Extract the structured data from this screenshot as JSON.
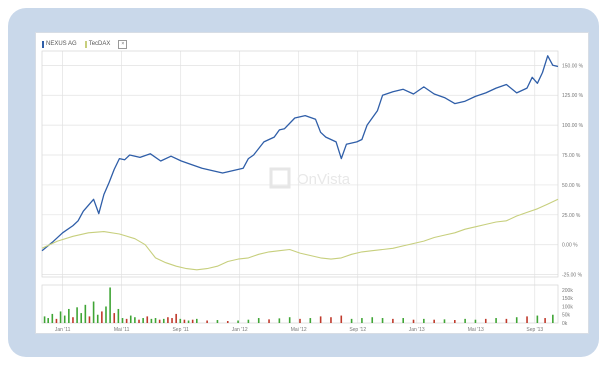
{
  "legend": {
    "items": [
      {
        "label": "NEXUS AG",
        "color": "#2f5ea8"
      },
      {
        "label": "TecDAX",
        "color": "#c7cf7d"
      }
    ],
    "close_label": "×"
  },
  "watermark": {
    "text": "OnVista",
    "icon": "onvista-logo-icon"
  },
  "chart_data": {
    "type": "line",
    "x_ticks": [
      "Jan '11",
      "Mai '11",
      "Sep '11",
      "Jan '12",
      "Mai '12",
      "Sep '12",
      "Jan '13",
      "Mai '13",
      "Sep '13"
    ],
    "y_ticks": [
      "150.00 %",
      "125.00 %",
      "100.00 %",
      "75.00 %",
      "50.00 %",
      "25.00 %",
      "0.00 %",
      "-25.00 %"
    ],
    "ylim": [
      -27,
      162
    ],
    "colors": {
      "nexus": "#2f5ea8",
      "tecdax": "#c7cf7d",
      "volume_up": "#3fa535",
      "volume_down": "#c0392b",
      "grid": "#e2e2e2"
    },
    "series": [
      {
        "name": "NEXUS AG",
        "points": [
          [
            0.0,
            -5
          ],
          [
            0.02,
            2
          ],
          [
            0.04,
            10
          ],
          [
            0.06,
            16
          ],
          [
            0.07,
            20
          ],
          [
            0.08,
            28
          ],
          [
            0.09,
            33
          ],
          [
            0.1,
            38
          ],
          [
            0.11,
            26
          ],
          [
            0.12,
            42
          ],
          [
            0.13,
            52
          ],
          [
            0.14,
            63
          ],
          [
            0.15,
            72
          ],
          [
            0.16,
            71
          ],
          [
            0.17,
            75
          ],
          [
            0.19,
            73
          ],
          [
            0.21,
            76
          ],
          [
            0.23,
            70
          ],
          [
            0.25,
            74
          ],
          [
            0.27,
            70
          ],
          [
            0.29,
            67
          ],
          [
            0.31,
            64
          ],
          [
            0.33,
            62
          ],
          [
            0.35,
            60
          ],
          [
            0.37,
            62
          ],
          [
            0.39,
            64
          ],
          [
            0.4,
            72
          ],
          [
            0.41,
            75
          ],
          [
            0.43,
            86
          ],
          [
            0.45,
            90
          ],
          [
            0.46,
            96
          ],
          [
            0.47,
            97
          ],
          [
            0.49,
            106
          ],
          [
            0.51,
            108
          ],
          [
            0.53,
            105
          ],
          [
            0.54,
            94
          ],
          [
            0.55,
            90
          ],
          [
            0.57,
            86
          ],
          [
            0.58,
            72
          ],
          [
            0.59,
            84
          ],
          [
            0.61,
            86
          ],
          [
            0.62,
            88
          ],
          [
            0.63,
            100
          ],
          [
            0.65,
            112
          ],
          [
            0.66,
            125
          ],
          [
            0.68,
            128
          ],
          [
            0.7,
            130
          ],
          [
            0.72,
            126
          ],
          [
            0.74,
            132
          ],
          [
            0.76,
            126
          ],
          [
            0.78,
            123
          ],
          [
            0.8,
            118
          ],
          [
            0.82,
            120
          ],
          [
            0.84,
            124
          ],
          [
            0.86,
            127
          ],
          [
            0.88,
            131
          ],
          [
            0.9,
            134
          ],
          [
            0.92,
            127
          ],
          [
            0.94,
            131
          ],
          [
            0.95,
            140
          ],
          [
            0.96,
            135
          ],
          [
            0.97,
            144
          ],
          [
            0.98,
            158
          ],
          [
            0.99,
            150
          ],
          [
            1.0,
            149
          ]
        ]
      },
      {
        "name": "TecDAX",
        "points": [
          [
            0.0,
            -3
          ],
          [
            0.03,
            3
          ],
          [
            0.06,
            7
          ],
          [
            0.09,
            10
          ],
          [
            0.12,
            11
          ],
          [
            0.15,
            9
          ],
          [
            0.18,
            5
          ],
          [
            0.2,
            0
          ],
          [
            0.22,
            -11
          ],
          [
            0.24,
            -15
          ],
          [
            0.26,
            -18
          ],
          [
            0.28,
            -20
          ],
          [
            0.3,
            -21
          ],
          [
            0.32,
            -20
          ],
          [
            0.34,
            -18
          ],
          [
            0.36,
            -14
          ],
          [
            0.38,
            -12
          ],
          [
            0.4,
            -11
          ],
          [
            0.42,
            -8
          ],
          [
            0.44,
            -6
          ],
          [
            0.46,
            -5
          ],
          [
            0.48,
            -4
          ],
          [
            0.5,
            -7
          ],
          [
            0.52,
            -9
          ],
          [
            0.54,
            -11
          ],
          [
            0.56,
            -12
          ],
          [
            0.58,
            -11
          ],
          [
            0.6,
            -8
          ],
          [
            0.62,
            -6
          ],
          [
            0.64,
            -5
          ],
          [
            0.66,
            -4
          ],
          [
            0.68,
            -3
          ],
          [
            0.7,
            -1
          ],
          [
            0.72,
            1
          ],
          [
            0.74,
            3
          ],
          [
            0.76,
            6
          ],
          [
            0.78,
            8
          ],
          [
            0.8,
            10
          ],
          [
            0.82,
            13
          ],
          [
            0.84,
            15
          ],
          [
            0.86,
            17
          ],
          [
            0.88,
            19
          ],
          [
            0.9,
            20
          ],
          [
            0.92,
            24
          ],
          [
            0.94,
            27
          ],
          [
            0.96,
            30
          ],
          [
            0.98,
            34
          ],
          [
            1.0,
            38
          ]
        ]
      }
    ],
    "volume": {
      "y_ticks": [
        "200k",
        "150k",
        "100k",
        "50k",
        "0k"
      ],
      "ylim": [
        0,
        230
      ],
      "bars": [
        [
          0.005,
          40,
          "up"
        ],
        [
          0.012,
          30,
          "up"
        ],
        [
          0.02,
          55,
          "up"
        ],
        [
          0.028,
          25,
          "down"
        ],
        [
          0.036,
          70,
          "up"
        ],
        [
          0.044,
          45,
          "up"
        ],
        [
          0.052,
          85,
          "up"
        ],
        [
          0.06,
          35,
          "down"
        ],
        [
          0.068,
          95,
          "up"
        ],
        [
          0.076,
          60,
          "up"
        ],
        [
          0.084,
          110,
          "up"
        ],
        [
          0.092,
          40,
          "down"
        ],
        [
          0.1,
          130,
          "up"
        ],
        [
          0.108,
          50,
          "up"
        ],
        [
          0.116,
          70,
          "down"
        ],
        [
          0.124,
          100,
          "up"
        ],
        [
          0.132,
          215,
          "up"
        ],
        [
          0.14,
          60,
          "down"
        ],
        [
          0.148,
          85,
          "up"
        ],
        [
          0.156,
          30,
          "up"
        ],
        [
          0.164,
          25,
          "down"
        ],
        [
          0.172,
          45,
          "up"
        ],
        [
          0.18,
          35,
          "up"
        ],
        [
          0.188,
          20,
          "down"
        ],
        [
          0.196,
          30,
          "up"
        ],
        [
          0.204,
          40,
          "down"
        ],
        [
          0.212,
          25,
          "up"
        ],
        [
          0.22,
          30,
          "up"
        ],
        [
          0.228,
          20,
          "down"
        ],
        [
          0.236,
          25,
          "up"
        ],
        [
          0.244,
          35,
          "down"
        ],
        [
          0.252,
          30,
          "down"
        ],
        [
          0.26,
          55,
          "down"
        ],
        [
          0.268,
          25,
          "up"
        ],
        [
          0.276,
          20,
          "down"
        ],
        [
          0.284,
          15,
          "up"
        ],
        [
          0.292,
          20,
          "down"
        ],
        [
          0.3,
          25,
          "up"
        ],
        [
          0.32,
          15,
          "down"
        ],
        [
          0.34,
          18,
          "up"
        ],
        [
          0.36,
          12,
          "down"
        ],
        [
          0.38,
          15,
          "up"
        ],
        [
          0.4,
          20,
          "up"
        ],
        [
          0.42,
          30,
          "up"
        ],
        [
          0.44,
          22,
          "down"
        ],
        [
          0.46,
          28,
          "up"
        ],
        [
          0.48,
          35,
          "up"
        ],
        [
          0.5,
          25,
          "down"
        ],
        [
          0.52,
          30,
          "up"
        ],
        [
          0.54,
          40,
          "down"
        ],
        [
          0.56,
          35,
          "down"
        ],
        [
          0.58,
          45,
          "down"
        ],
        [
          0.6,
          25,
          "up"
        ],
        [
          0.62,
          30,
          "up"
        ],
        [
          0.64,
          35,
          "up"
        ],
        [
          0.66,
          30,
          "up"
        ],
        [
          0.68,
          25,
          "down"
        ],
        [
          0.7,
          30,
          "up"
        ],
        [
          0.72,
          20,
          "down"
        ],
        [
          0.74,
          25,
          "up"
        ],
        [
          0.76,
          20,
          "down"
        ],
        [
          0.78,
          22,
          "up"
        ],
        [
          0.8,
          18,
          "down"
        ],
        [
          0.82,
          25,
          "up"
        ],
        [
          0.84,
          20,
          "up"
        ],
        [
          0.86,
          25,
          "down"
        ],
        [
          0.88,
          30,
          "up"
        ],
        [
          0.9,
          25,
          "down"
        ],
        [
          0.92,
          35,
          "up"
        ],
        [
          0.94,
          40,
          "down"
        ],
        [
          0.96,
          45,
          "up"
        ],
        [
          0.975,
          30,
          "down"
        ],
        [
          0.99,
          50,
          "up"
        ]
      ]
    },
    "grid": true,
    "legend_position": "top-left"
  }
}
